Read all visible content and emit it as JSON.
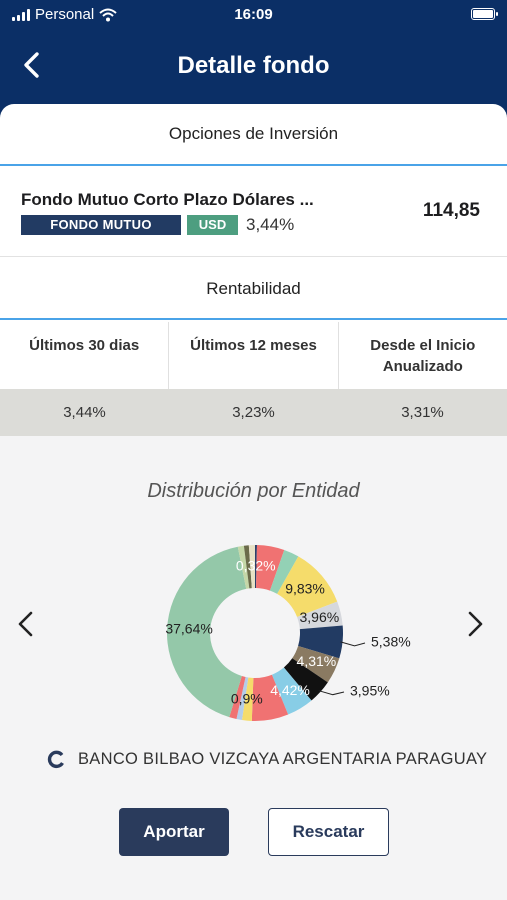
{
  "status_bar": {
    "carrier": "Personal",
    "time": "16:09"
  },
  "header": {
    "title": "Detalle fondo"
  },
  "options_header": "Opciones de Inversión",
  "fund": {
    "name": "Fondo Mutuo Corto Plazo Dólares ...",
    "type_badge": "FONDO MUTUO",
    "currency_badge": "USD",
    "rate": "3,44%",
    "value": "114,85"
  },
  "rentabilidad": {
    "title": "Rentabilidad",
    "columns": [
      "Últimos 30 dias",
      "Últimos 12 meses",
      "Desde el Inicio Anualizado"
    ],
    "values": [
      "3,44%",
      "3,23%",
      "3,31%"
    ]
  },
  "distribution": {
    "title": "Distribución por Entidad",
    "entity_selected": "BANCO BILBAO VIZCAYA ARGENTARIA PARAGUAY"
  },
  "chart_data": {
    "type": "pie",
    "title": "Distribución por Entidad",
    "slice_labels": [
      "0,32%",
      "9,83%",
      "3,96%",
      "5,38%",
      "4,31%",
      "3,95%",
      "4,42%",
      "0,9%",
      "37,64%"
    ],
    "slices": [
      {
        "label": "0,32%",
        "value": 0.32,
        "color": "#2b3f6a"
      },
      {
        "label": "",
        "value": 4.5,
        "color": "#f07272"
      },
      {
        "label": "",
        "value": 2.5,
        "color": "#93d1b5"
      },
      {
        "label": "9,83%",
        "value": 9.83,
        "color": "#f5dc6b"
      },
      {
        "label": "3,96%",
        "value": 3.96,
        "color": "#d6d8dd"
      },
      {
        "label": "5,38%",
        "value": 5.38,
        "color": "#223b63"
      },
      {
        "label": "4,31%",
        "value": 4.31,
        "color": "#8a7a62"
      },
      {
        "label": "3,95%",
        "value": 3.95,
        "color": "#111111"
      },
      {
        "label": "4,42%",
        "value": 4.42,
        "color": "#88cde6"
      },
      {
        "label": "",
        "value": 6.0,
        "color": "#f07272"
      },
      {
        "label": "",
        "value": 1.6,
        "color": "#f5dc6b"
      },
      {
        "label": "0,9%",
        "value": 0.9,
        "color": "#b4cdea"
      },
      {
        "label": "",
        "value": 1.2,
        "color": "#f07272"
      },
      {
        "label": "37,64%",
        "value": 37.64,
        "color": "#94c8a9"
      },
      {
        "label": "",
        "value": 1.0,
        "color": "#c5d7a8"
      },
      {
        "label": "",
        "value": 0.8,
        "color": "#6b6b4a"
      },
      {
        "label": "",
        "value": 1.0,
        "color": "#e7e1c5"
      }
    ]
  },
  "actions": {
    "primary": "Aportar",
    "secondary": "Rescatar"
  },
  "colors": {
    "header_bg": "#0b2f66",
    "accent_line": "#4aa3e8",
    "badge_fund": "#223b63",
    "badge_usd": "#4d9e80",
    "button_primary": "#2a3b5c"
  }
}
